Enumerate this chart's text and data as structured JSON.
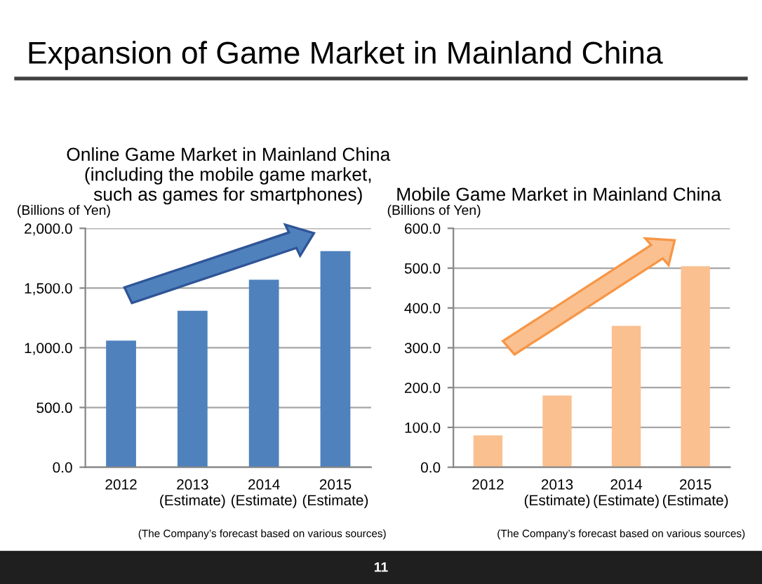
{
  "chart_data": [
    {
      "type": "bar",
      "title": "Online Game Market in Mainland China\n(including the mobile game market,\nsuch as games for smartphones)",
      "ylabel": "(Billions of Yen)",
      "categories": [
        "2012",
        "2013\n(Estimate)",
        "2014\n(Estimate)",
        "2015\n(Estimate)"
      ],
      "values": [
        1060,
        1310,
        1570,
        1810
      ],
      "color": "#4f81bd",
      "ylim": [
        0,
        2000
      ],
      "yticks": [
        {
          "value": 0,
          "label": "0.0"
        },
        {
          "value": 500,
          "label": "500.0"
        },
        {
          "value": 1000,
          "label": "1,000.0"
        },
        {
          "value": 1500,
          "label": "1,500.0"
        },
        {
          "value": 2000,
          "label": "2,000.0"
        }
      ],
      "grid": "y",
      "annotations": [
        "Expansion of Game Market in Mainland China",
        "(The Company’s forecast based on various sources)"
      ]
    },
    {
      "type": "bar",
      "title": "Mobile Game Market in Mainland China",
      "ylabel": "(Billions of Yen)",
      "categories": [
        "2012",
        "2013\n(Estimate)",
        "2014\n(Estimate)",
        "2015\n(Estimate)"
      ],
      "values": [
        80,
        180,
        355,
        505
      ],
      "color": "#fac090",
      "ylim": [
        0,
        600
      ],
      "yticks": [
        {
          "value": 0,
          "label": "0.0"
        },
        {
          "value": 100,
          "label": "100.0"
        },
        {
          "value": 200,
          "label": "200.0"
        },
        {
          "value": 300,
          "label": "300.0"
        },
        {
          "value": 400,
          "label": "400.0"
        },
        {
          "value": 500,
          "label": "500.0"
        },
        {
          "value": 600,
          "label": "600.0"
        }
      ],
      "grid": "y",
      "annotations": [
        "(The Company’s forecast based on various sources)",
        "11"
      ]
    }
  ]
}
